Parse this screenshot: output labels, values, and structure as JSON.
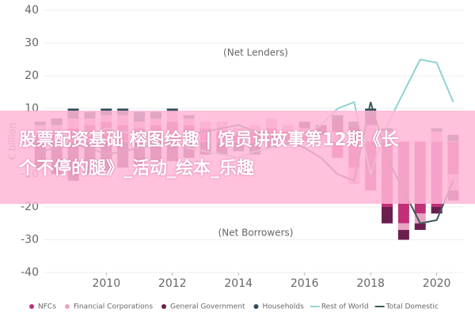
{
  "chart_data": {
    "type": "stacked-bar-line",
    "y_label": "€ billion",
    "annotations": [
      "(Net Lenders)",
      "(Net Borrowers)"
    ],
    "x": [
      2008,
      2008.5,
      2009,
      2009.5,
      2010,
      2010.5,
      2011,
      2011.5,
      2012,
      2012.5,
      2013,
      2013.5,
      2014,
      2014.5,
      2015,
      2015.5,
      2016,
      2016.5,
      2017,
      2017.5,
      2018,
      2018.5,
      2019,
      2019.5,
      2020,
      2020.5
    ],
    "xlim": [
      2008.1,
      2020.8
    ],
    "xticks": [
      2010,
      2012,
      2014,
      2016,
      2018,
      2020
    ],
    "ylim": [
      -40,
      40
    ],
    "yticks": [
      -40,
      -30,
      -20,
      -10,
      0,
      10,
      20,
      30,
      40
    ],
    "series": [
      {
        "name": "NFCs",
        "kind": "bar",
        "color": "#c2307a",
        "values": [
          2,
          3,
          4,
          5,
          6,
          5,
          4,
          5,
          6,
          5,
          4,
          3,
          2,
          3,
          4,
          3,
          2,
          0,
          -5,
          -8,
          -15,
          -20,
          -25,
          -22,
          -20,
          -10
        ]
      },
      {
        "name": "Financial Corporations",
        "kind": "bar",
        "color": "#eba3c4",
        "values": [
          3,
          2,
          3,
          2,
          2,
          3,
          2,
          2,
          3,
          2,
          2,
          3,
          2,
          2,
          3,
          2,
          2,
          2,
          3,
          -5,
          5,
          3,
          -2,
          -3,
          3,
          -5
        ]
      },
      {
        "name": "General Government",
        "kind": "bar",
        "color": "#6b1f4f",
        "values": [
          -8,
          -10,
          -12,
          -10,
          -9,
          -8,
          -7,
          -6,
          -6,
          -5,
          -4,
          -3,
          -2,
          -2,
          -1,
          0,
          2,
          3,
          4,
          5,
          3,
          -5,
          -3,
          -2,
          -2,
          -3
        ]
      },
      {
        "name": "Households",
        "kind": "bar",
        "color": "#2e4a5a",
        "values": [
          1,
          2,
          3,
          2,
          2,
          2,
          3,
          2,
          1,
          1,
          0,
          -1,
          -1,
          -2,
          -1,
          -1,
          0,
          0,
          1,
          1,
          2,
          1,
          0,
          0,
          1,
          2
        ]
      },
      {
        "name": "Rest of World",
        "kind": "line",
        "color": "#8fd3d3",
        "values": [
          3,
          2,
          1,
          2,
          4,
          3,
          2,
          1,
          0,
          -2,
          -3,
          -4,
          -5,
          -3,
          -2,
          0,
          2,
          5,
          10,
          12,
          -10,
          5,
          15,
          25,
          24,
          12
        ]
      },
      {
        "name": "Total Domestic",
        "kind": "line",
        "color": "#3d5a5a",
        "values": [
          -3,
          -2,
          -1,
          -2,
          -4,
          -3,
          -2,
          -1,
          0,
          2,
          3,
          4,
          5,
          3,
          2,
          0,
          -2,
          -5,
          -10,
          -12,
          12,
          -5,
          -15,
          -25,
          -24,
          -12
        ]
      }
    ]
  },
  "banner": {
    "lines": [
      "股票配资基础 榕图绘趣 | 馆员讲故事第12期《长",
      "个不停的腿》_活动_绘本_乐趣"
    ]
  }
}
